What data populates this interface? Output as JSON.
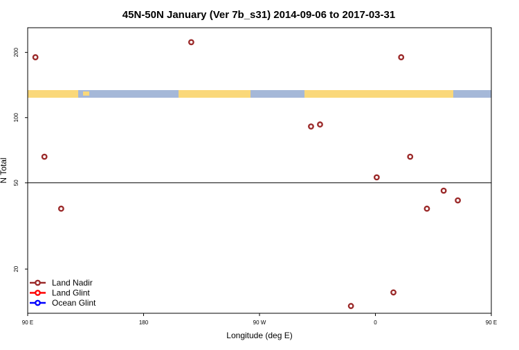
{
  "chart_data": {
    "type": "scatter",
    "title": "45N-50N January (Ver 7b_s31)   2014-09-06 to 2017-03-31",
    "xlabel": "Longitude (deg E)",
    "ylabel": "N Total",
    "x_scale": "longitude",
    "y_scale": "log",
    "xlim": [
      90,
      450
    ],
    "ylim": [
      12.5,
      260
    ],
    "x_ticks": [
      {
        "value": 90,
        "label": "90 E"
      },
      {
        "value": 180,
        "label": "180"
      },
      {
        "value": 270,
        "label": "90 W"
      },
      {
        "value": 360,
        "label": "0"
      },
      {
        "value": 450,
        "label": "90 E"
      },
      {
        "value": 540,
        "label": "180"
      }
    ],
    "y_ticks": [
      {
        "value": 20,
        "label": "20"
      },
      {
        "value": 50,
        "label": "50"
      },
      {
        "value": 100,
        "label": "100"
      },
      {
        "value": 200,
        "label": "200"
      }
    ],
    "reference_line_y": 50,
    "map_band": {
      "ocean_color": "#a5b8d8",
      "land_color": "#fad87a"
    },
    "legend": {
      "position": "bottom-left"
    },
    "series": [
      {
        "name": "Land Nadir",
        "color": "#9b2a2a",
        "points": [
          {
            "x": 96,
            "y": 190
          },
          {
            "x": 103,
            "y": 66
          },
          {
            "x": 116,
            "y": 38
          },
          {
            "x": 217,
            "y": 223
          },
          {
            "x": 310,
            "y": 91
          },
          {
            "x": 317,
            "y": 93
          },
          {
            "x": 341,
            "y": 13.5
          },
          {
            "x": 361,
            "y": 53
          },
          {
            "x": 374,
            "y": 15.6
          },
          {
            "x": 380,
            "y": 190
          },
          {
            "x": 387,
            "y": 66
          },
          {
            "x": 400,
            "y": 38
          },
          {
            "x": 413,
            "y": 46
          },
          {
            "x": 424,
            "y": 41.5
          }
        ]
      },
      {
        "name": "Land Glint",
        "color": "#ff0000",
        "points": []
      },
      {
        "name": "Ocean Glint",
        "color": "#0000ff",
        "points": []
      }
    ]
  }
}
